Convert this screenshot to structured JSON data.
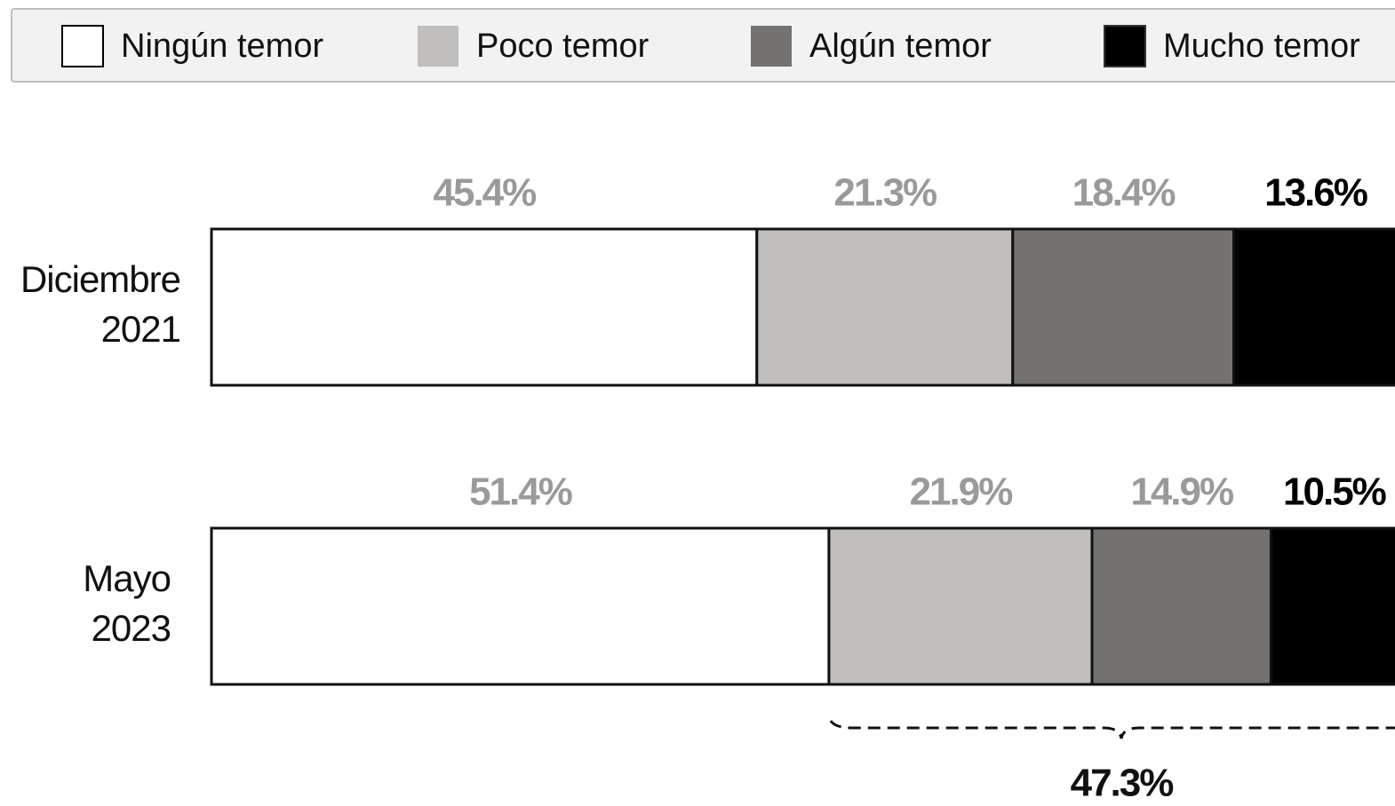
{
  "chart_data": {
    "type": "stacked-barh",
    "categories": [
      "Diciembre 2021",
      "Mayo 2023"
    ],
    "series": [
      {
        "name": "Ningún temor",
        "color": "#ffffff",
        "label_color": "#9a9a9a",
        "values": [
          45.4,
          51.4
        ],
        "value_labels": [
          "45.4%",
          "51.4%"
        ]
      },
      {
        "name": "Poco temor",
        "color": "#c0bfbd",
        "label_color": "#9a9a9a",
        "values": [
          21.3,
          21.9
        ],
        "value_labels": [
          "21.3%",
          "21.9%"
        ]
      },
      {
        "name": "Algún temor",
        "color": "#737270",
        "label_color": "#9a9a9a",
        "values": [
          18.4,
          14.9
        ],
        "value_labels": [
          "18.4%",
          "14.9%"
        ]
      },
      {
        "name": "Mucho temor",
        "color": "#000000",
        "label_color": "#000000",
        "values": [
          13.6,
          10.5
        ],
        "value_labels": [
          "13.6%",
          "10.5%"
        ]
      }
    ],
    "xlim": [
      0,
      100
    ],
    "annotation": "47.3%"
  }
}
